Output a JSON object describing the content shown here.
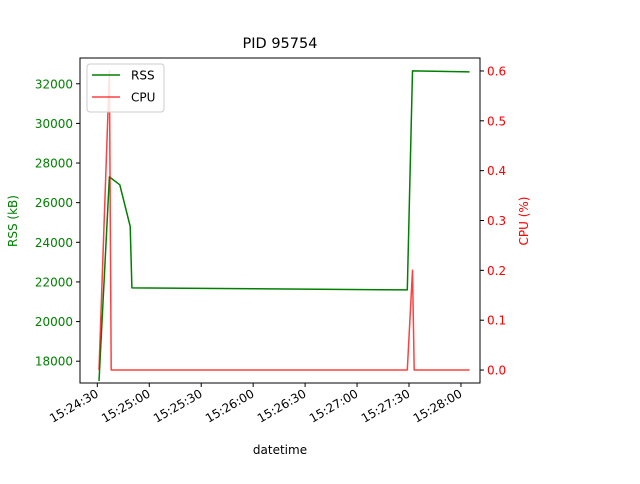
{
  "chart_data": {
    "type": "line",
    "title": "PID 95754",
    "xlabel": "datetime",
    "ylabel_left": "RSS (kB)",
    "ylabel_right": "CPU (%)",
    "xlim": [
      "15:24:20",
      "15:28:11"
    ],
    "ylim_left": [
      16900,
      33300
    ],
    "ylim_right": [
      -0.026,
      0.626
    ],
    "x_ticks": [
      "15:24:30",
      "15:25:00",
      "15:25:30",
      "15:26:00",
      "15:26:30",
      "15:27:00",
      "15:27:30",
      "15:28:00"
    ],
    "y_ticks_left": [
      18000,
      20000,
      22000,
      24000,
      26000,
      28000,
      30000,
      32000
    ],
    "y_ticks_right": [
      0.0,
      0.1,
      0.2,
      0.3,
      0.4,
      0.5,
      0.6
    ],
    "legend_position": "top-left",
    "series": [
      {
        "name": "RSS",
        "axis": "left",
        "color": "#008000",
        "x": [
          "15:24:31",
          "15:24:37",
          "15:24:43",
          "15:24:49",
          "15:24:50",
          "15:27:29",
          "15:27:32",
          "15:28:05"
        ],
        "values": [
          17000,
          27300,
          26900,
          24800,
          21700,
          21600,
          32650,
          32600
        ]
      },
      {
        "name": "CPU",
        "axis": "right",
        "color": "#ff0000",
        "x": [
          "15:24:31",
          "15:24:37",
          "15:24:38",
          "15:27:29",
          "15:27:32",
          "15:27:33",
          "15:28:05"
        ],
        "values": [
          0.0,
          0.6,
          0.0,
          0.0,
          0.2,
          0.0,
          0.0
        ]
      }
    ]
  }
}
